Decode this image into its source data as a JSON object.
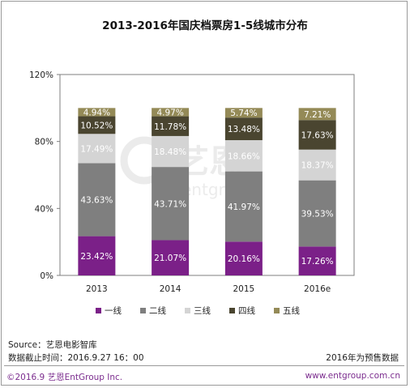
{
  "chart_data": {
    "type": "bar",
    "stacked": true,
    "title": "2013-2016年国庆档票房1-5线城市分布",
    "categories": [
      "2013",
      "2014",
      "2015",
      "2016e"
    ],
    "series": [
      {
        "name": "一线",
        "color": "#7b2088",
        "values": [
          23.42,
          21.07,
          20.16,
          17.26
        ]
      },
      {
        "name": "二线",
        "color": "#7f7f7f",
        "values": [
          43.63,
          43.71,
          41.97,
          39.53
        ]
      },
      {
        "name": "三线",
        "color": "#d4d4d4",
        "values": [
          17.49,
          18.48,
          18.66,
          18.37
        ]
      },
      {
        "name": "四线",
        "color": "#4a4530",
        "values": [
          10.52,
          11.78,
          13.48,
          17.63
        ]
      },
      {
        "name": "五线",
        "color": "#948a57",
        "values": [
          4.94,
          4.97,
          5.74,
          7.21
        ]
      }
    ],
    "y_ticks": [
      "0%",
      "40%",
      "80%",
      "120%"
    ],
    "ylim": [
      0,
      120
    ],
    "legend_position": "bottom",
    "grid": false
  },
  "watermark_text": "艺恩 entgroup",
  "footer": {
    "source": "Source：艺恩电影智库",
    "cutoff": "数据截止时间：2016.9.27 16：00",
    "forecast_note": "2016年为预售数据",
    "copyright": "©2016.9 艺恩EntGroup Inc.",
    "website": "www.entgroup.com.cn"
  }
}
